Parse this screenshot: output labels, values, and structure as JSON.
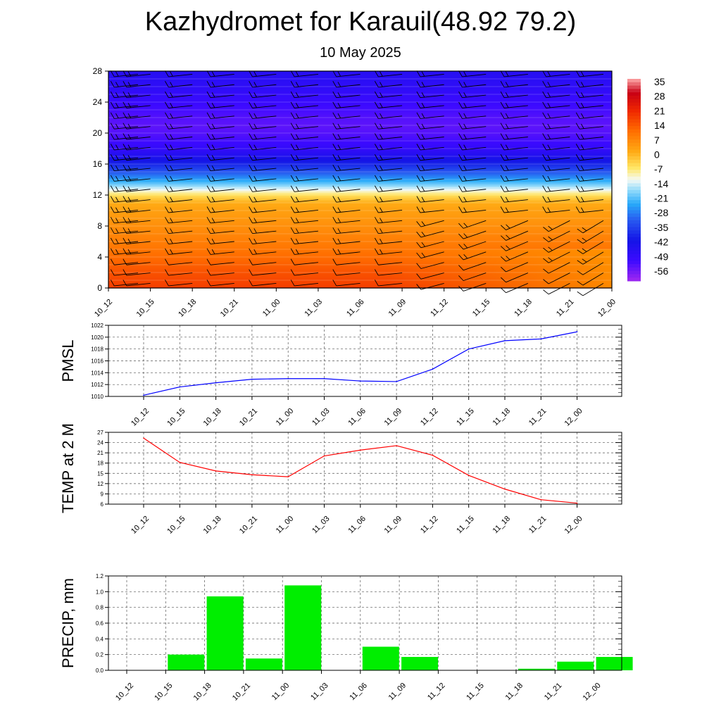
{
  "title": "Kazhydromet for Karauil(48.92 79.2)",
  "subtitle": "10 May 2025",
  "chart_data": [
    {
      "type": "heatmap",
      "x_categories": [
        "10_12",
        "10_15",
        "10_18",
        "10_21",
        "11_00",
        "11_03",
        "11_06",
        "11_09",
        "11_12",
        "11_15",
        "11_18",
        "11_21",
        "12_00"
      ],
      "ylim": [
        0,
        28
      ],
      "yticks": [
        0,
        4,
        8,
        12,
        16,
        20,
        24,
        28
      ],
      "colorbar": {
        "labels": [
          "35",
          "28",
          "21",
          "14",
          "7",
          "0",
          "-7",
          "-14",
          "-21",
          "-28",
          "-35",
          "-42",
          "-49",
          "-56"
        ],
        "range": [
          -63,
          42
        ]
      },
      "profile": {
        "levels": [
          0,
          2,
          4,
          6,
          8,
          10,
          11,
          12,
          13,
          14,
          15,
          16,
          17,
          18,
          19,
          20,
          21,
          22,
          24,
          26,
          28
        ],
        "temps": [
          22,
          19,
          15,
          12,
          9,
          6,
          4,
          -3,
          -14,
          -24,
          -32,
          -39,
          -45,
          -50,
          -53,
          -55,
          -56,
          -55,
          -52,
          -49,
          -47
        ]
      },
      "wind_barbs": true
    },
    {
      "type": "line",
      "ylabel": "PMSL",
      "x": [
        "10_12",
        "10_15",
        "10_18",
        "10_21",
        "11_00",
        "11_03",
        "11_06",
        "11_09",
        "11_12",
        "11_15",
        "11_18",
        "11_21",
        "12_00"
      ],
      "series": [
        {
          "values": [
            1010.2,
            1011.6,
            1012.3,
            1012.9,
            1013.0,
            1013.0,
            1012.6,
            1012.5,
            1014.6,
            1018.0,
            1019.4,
            1019.7,
            1020.9
          ],
          "color": "#0000ff"
        }
      ],
      "ylim": [
        1010,
        1022
      ],
      "yticks": [
        "1010",
        "1012",
        "1014",
        "1016",
        "1018",
        "1020",
        "1022"
      ],
      "grid": true
    },
    {
      "type": "line",
      "ylabel": "TEMP at 2 M",
      "x": [
        "10_12",
        "10_15",
        "10_18",
        "10_21",
        "11_00",
        "11_03",
        "11_06",
        "11_09",
        "11_12",
        "11_15",
        "11_18",
        "11_21",
        "12_00"
      ],
      "series": [
        {
          "values": [
            25.3,
            18.2,
            15.7,
            14.6,
            14.0,
            20.1,
            21.8,
            23.1,
            20.3,
            14.4,
            10.4,
            7.3,
            6.3
          ],
          "color": "#ff0000"
        }
      ],
      "ylim": [
        6,
        27
      ],
      "yticks": [
        "6",
        "9",
        "12",
        "15",
        "18",
        "21",
        "24",
        "27"
      ],
      "grid": true
    },
    {
      "type": "bar",
      "ylabel": "PRECIP, mm",
      "categories": [
        "10_12",
        "10_15",
        "10_18",
        "10_21",
        "11_00",
        "11_03",
        "11_06",
        "11_09",
        "11_12",
        "11_15",
        "11_18",
        "11_21",
        "12_00"
      ],
      "values": [
        0,
        0.2,
        0.94,
        0.15,
        1.08,
        0,
        0.3,
        0.17,
        0,
        0,
        0.02,
        0.11,
        0.17
      ],
      "ylim": [
        0,
        1.2
      ],
      "yticks": [
        "0.0",
        "0.2",
        "0.4",
        "0.6",
        "0.8",
        "1.0",
        "1.2"
      ],
      "bar_color": "#00ee00",
      "grid": true
    }
  ]
}
